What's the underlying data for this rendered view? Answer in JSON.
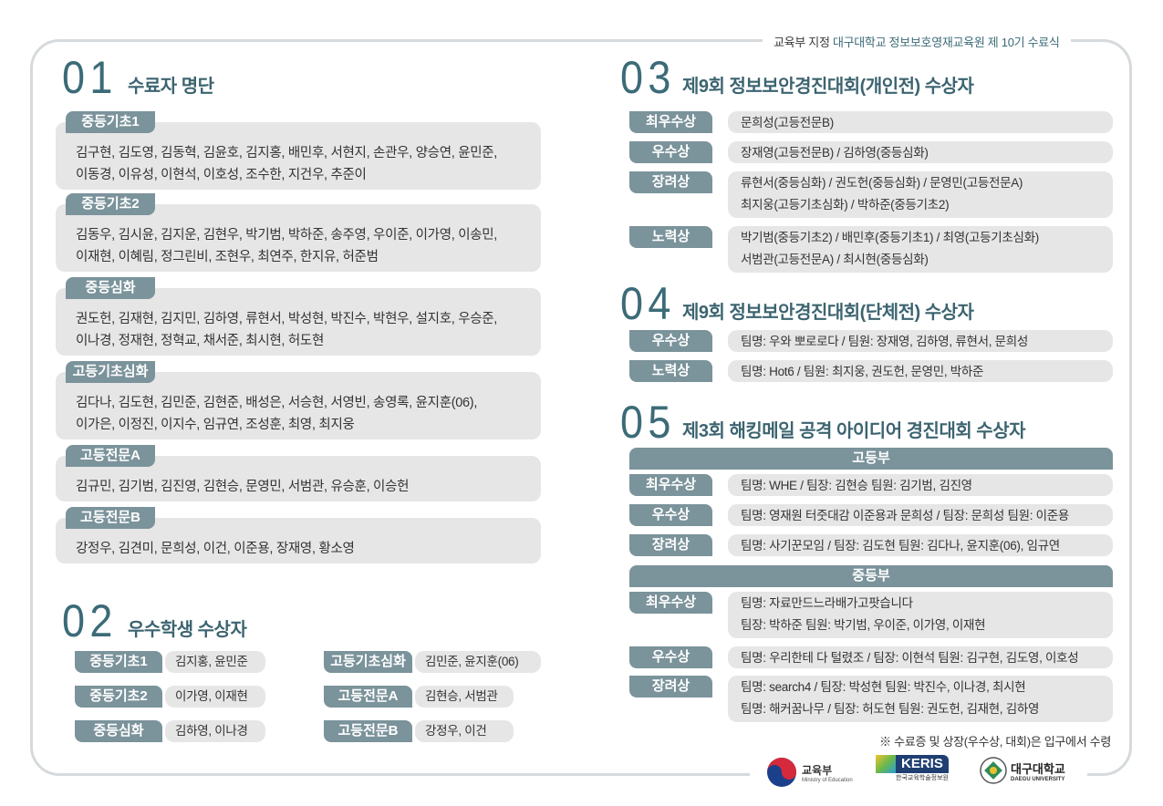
{
  "header": {
    "prefix": "교육부 지정",
    "title": "대구대학교 정보보호영재교육원 제 10기 수료식"
  },
  "section1": {
    "number": "01",
    "title": "수료자 명단",
    "groups": [
      {
        "label": "중등기초1",
        "lines": [
          "김구현, 김도영, 김동혁, 김윤호, 김지홍, 배민후, 서현지, 손관우, 양승연, 윤민준,",
          "이동경, 이유성, 이현석, 이호성, 조수한, 지건우, 추준이"
        ]
      },
      {
        "label": "중등기초2",
        "lines": [
          "김동우, 김시윤, 김지운, 김현우, 박기범, 박하준, 송주영, 우이준, 이가영, 이송민,",
          "이재현, 이혜림, 정그린비, 조현우, 최연주, 한지유, 허준범"
        ]
      },
      {
        "label": "중등심화",
        "lines": [
          "권도헌, 김재현, 김지민, 김하영, 류현서, 박성현, 박진수, 박현우, 설지호, 우승준,",
          "이나경, 정재현, 정혁교, 채서준, 최시현, 허도현"
        ]
      },
      {
        "label": "고등기초심화",
        "lines": [
          "김다나, 김도현, 김민준, 김현준, 배성은, 서승현, 서영빈, 송영록, 윤지훈(06),",
          "이가은, 이정진, 이지수, 임규연, 조성훈, 최영, 최지웅"
        ]
      },
      {
        "label": "고등전문A",
        "lines": [
          "김규민, 김기범, 김진영, 김현승, 문영민, 서범관, 유승훈, 이승헌"
        ]
      },
      {
        "label": "고등전문B",
        "lines": [
          "강정우, 김견미, 문희성, 이건, 이준용, 장재영, 황소영"
        ]
      }
    ]
  },
  "section2": {
    "number": "02",
    "title": "우수학생 수상자",
    "left": [
      {
        "label": "중등기초1",
        "value": "김지홍, 윤민준"
      },
      {
        "label": "중등기초2",
        "value": "이가영, 이재현"
      },
      {
        "label": "중등심화",
        "value": "김하영, 이나경"
      }
    ],
    "right": [
      {
        "label": "고등기초심화",
        "value": "김민준, 윤지훈(06)"
      },
      {
        "label": "고등전문A",
        "value": "김현승, 서범관"
      },
      {
        "label": "고등전문B",
        "value": "강정우, 이건"
      }
    ]
  },
  "section3": {
    "number": "03",
    "title": "제9회 정보보안경진대회(개인전) 수상자",
    "rows": [
      {
        "label": "최우수상",
        "lines": [
          "문희성(고등전문B)"
        ]
      },
      {
        "label": "우수상",
        "lines": [
          "장재영(고등전문B) / 김하영(중등심화)"
        ]
      },
      {
        "label": "장려상",
        "lines": [
          "류현서(중등심화) / 권도헌(중등심화) / 문영민(고등전문A)",
          "최지웅(고등기초심화) / 박하준(중등기초2)"
        ]
      },
      {
        "label": "노력상",
        "lines": [
          "박기범(중등기초2) / 배민후(중등기초1) / 최영(고등기초심화)",
          "서범관(고등전문A) / 최시현(중등심화)"
        ]
      }
    ]
  },
  "section4": {
    "number": "04",
    "title": "제9회 정보보안경진대회(단체전) 수상자",
    "rows": [
      {
        "label": "우수상",
        "lines": [
          "팀명: 우와 뽀로로다 / 팀원: 장재영, 김하영, 류현서, 문희성"
        ]
      },
      {
        "label": "노력상",
        "lines": [
          "팀명: Hot6 / 팀원: 최지웅, 권도헌, 문영민, 박하준"
        ]
      }
    ]
  },
  "section5": {
    "number": "05",
    "title": "제3회 해킹메일 공격 아이디어 경진대회 수상자",
    "high": {
      "division": "고등부",
      "rows": [
        {
          "label": "최우수상",
          "lines": [
            "팀명: WHE / 팀장: 김현승  팀원: 김기범, 김진영"
          ]
        },
        {
          "label": "우수상",
          "lines": [
            "팀명: 영재원 터줏대감 이준용과 문희성 / 팀장: 문희성  팀원: 이준용"
          ]
        },
        {
          "label": "장려상",
          "lines": [
            "팀명: 사기꾼모임 / 팀장: 김도현  팀원: 김다나, 윤지훈(06), 임규연"
          ]
        }
      ]
    },
    "middle": {
      "division": "중등부",
      "rows": [
        {
          "label": "최우수상",
          "lines": [
            "팀명: 자료만드느라배가고팟습니다",
            "팀장: 박하준  팀원: 박기범, 우이준, 이가영, 이재현"
          ]
        },
        {
          "label": "우수상",
          "lines": [
            "팀명: 우리한테 다 털렸조 / 팀장: 이현석  팀원: 김구현, 김도영, 이호성"
          ]
        },
        {
          "label": "장려상",
          "lines": [
            "팀명: search4 / 팀장: 박성현  팀원: 박진수, 이나경, 최시현",
            "팀명: 해커꿈나무 / 팀장: 허도현  팀원: 권도헌, 김재현, 김하영"
          ]
        }
      ]
    }
  },
  "note": "※ 수료증 및 상장(우수상, 대회)은 입구에서 수령",
  "logos": {
    "moe": {
      "name": "교육부",
      "sub": "Ministry of Education"
    },
    "keris": {
      "name": "KERIS",
      "sub": "한국교육학술정보원"
    },
    "daegu": {
      "name": "대구대학교",
      "sub": "DAEGU UNIVERSITY"
    }
  },
  "colors": {
    "accent": "#3c6b78",
    "label_bg": "#7b939b",
    "box_bg": "#e6e6e6",
    "frame": "#d6dadc"
  }
}
